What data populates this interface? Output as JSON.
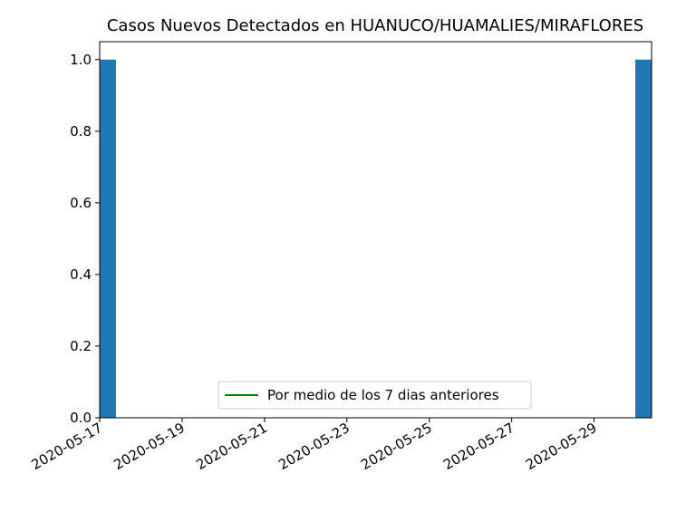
{
  "chart_data": {
    "type": "bar",
    "title": "Casos Nuevos Detectados en HUANUCO/HUAMALIES/MIRAFLORES",
    "xlabel": "",
    "ylabel": "",
    "x_start": "2020-05-17",
    "x_end": "2020-05-30",
    "bars": [
      {
        "date": "2020-05-17",
        "value": 1
      },
      {
        "date": "2020-05-30",
        "value": 1
      }
    ],
    "x_ticks": [
      "2020-05-17",
      "2020-05-19",
      "2020-05-21",
      "2020-05-23",
      "2020-05-25",
      "2020-05-27",
      "2020-05-29"
    ],
    "y_ticks": [
      "0.0",
      "0.2",
      "0.4",
      "0.6",
      "0.8",
      "1.0"
    ],
    "ylim": [
      0,
      1.05
    ],
    "grid": false,
    "legend": {
      "placement": "lower-center",
      "entries": [
        {
          "label": "Por medio de los 7 dias anteriores",
          "color": "#008000"
        }
      ]
    },
    "bar_color": "#1f77b4"
  }
}
